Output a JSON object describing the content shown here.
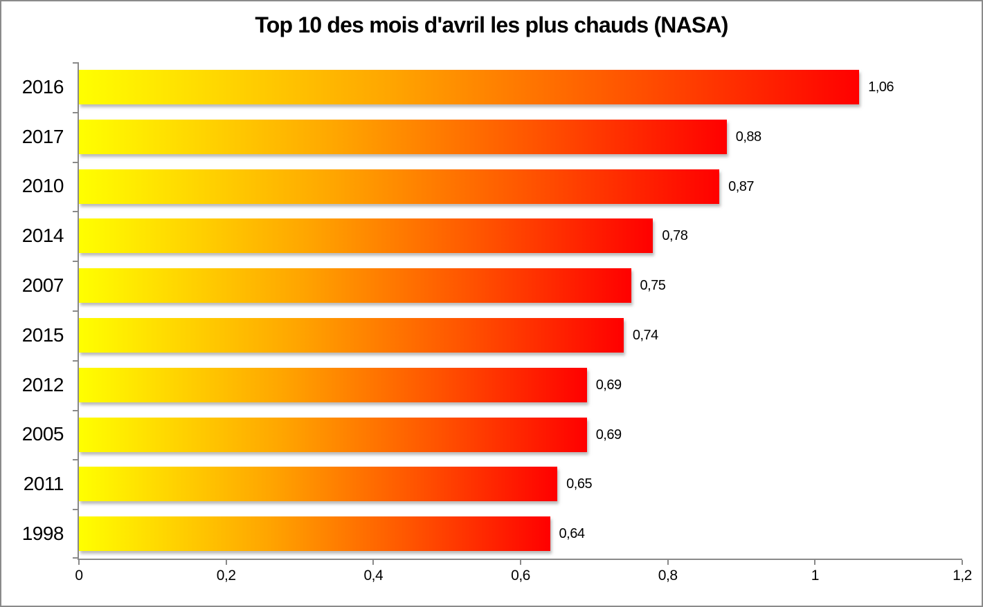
{
  "chart_data": {
    "type": "bar",
    "orientation": "horizontal",
    "title": "Top 10 des mois d'avril les plus chauds (NASA)",
    "categories": [
      "2016",
      "2017",
      "2010",
      "2014",
      "2007",
      "2015",
      "2012",
      "2005",
      "2011",
      "1998"
    ],
    "values": [
      1.06,
      0.88,
      0.87,
      0.78,
      0.75,
      0.74,
      0.69,
      0.69,
      0.65,
      0.64
    ],
    "value_labels": [
      "1,06",
      "0,88",
      "0,87",
      "0,78",
      "0,75",
      "0,74",
      "0,69",
      "0,69",
      "0,65",
      "0,64"
    ],
    "xlabel": "",
    "ylabel": "",
    "xlim": [
      0,
      1.2
    ],
    "x_ticks": [
      0,
      0.2,
      0.4,
      0.6,
      0.8,
      1,
      1.2
    ],
    "x_tick_labels": [
      "0",
      "0,2",
      "0,4",
      "0,6",
      "0,8",
      "1",
      "1,2"
    ],
    "grid": false,
    "legend": false,
    "colors": {
      "bar_gradient_stops": [
        "#ffff00",
        "#ffa500",
        "#ff5500",
        "#ff0000"
      ],
      "bar_gradient_positions": [
        "0%",
        "40%",
        "70%",
        "100%"
      ],
      "axis": "#898989",
      "text": "#000000",
      "background": "#ffffff",
      "frame_border": "#8a8a8a"
    }
  }
}
